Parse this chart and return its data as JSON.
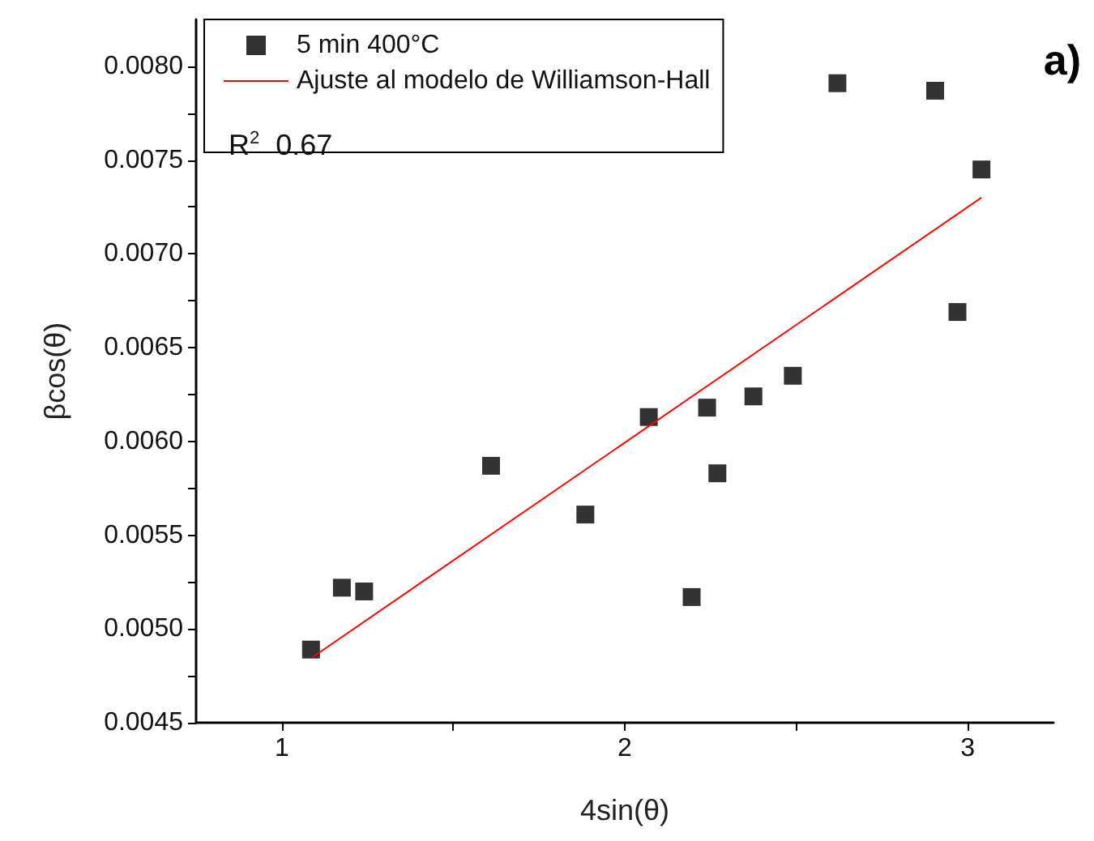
{
  "chart_data": {
    "type": "scatter",
    "xlabel": "4sin(θ)",
    "ylabel": "βcos(θ)",
    "annotations": [
      "R$^{2}$  0.67",
      "a)"
    ],
    "series": [
      {
        "name": "5 min 400°C",
        "type": "scatter",
        "color": "#000000",
        "marker": "square",
        "x": [
          1.085,
          1.175,
          1.24,
          1.61,
          1.885,
          2.07,
          2.195,
          2.24,
          2.27,
          2.375,
          2.49,
          2.62,
          2.905,
          2.97,
          3.04
        ],
        "values": [
          0.00489,
          0.00522,
          0.0052,
          0.00587,
          0.00561,
          0.00613,
          0.00517,
          0.00618,
          0.00583,
          0.00624,
          0.00635,
          0.00791,
          0.00787,
          0.00669,
          0.00745
        ]
      },
      {
        "name": "Ajuste al modelo de Williamson-Hall",
        "type": "line",
        "color": "#ff0000",
        "marker": "none",
        "x": [
          1.09,
          3.04
        ],
        "values": [
          0.00485,
          0.0073
        ]
      }
    ],
    "xlim": [
      0.75,
      3.25
    ],
    "ylim": [
      0.0045,
      0.00825
    ],
    "xticks": [
      1,
      {
        "value": 1.5,
        "label": null
      },
      2,
      {
        "value": 2.5,
        "label": null
      },
      3
    ],
    "yticks": [
      {
        "value": 0.0045,
        "label": "0.0045"
      },
      {
        "value": 0.00475,
        "label": null
      },
      {
        "value": 0.005,
        "label": "0.0050"
      },
      {
        "value": 0.00525,
        "label": null
      },
      {
        "value": 0.0055,
        "label": "0.0055"
      },
      {
        "value": 0.00575,
        "label": null
      },
      {
        "value": 0.006,
        "label": "0.0060"
      },
      {
        "value": 0.00625,
        "label": null
      },
      {
        "value": 0.0065,
        "label": "0.0065"
      },
      {
        "value": 0.00675,
        "label": null
      },
      {
        "value": 0.007,
        "label": "0.0070"
      },
      {
        "value": 0.00725,
        "label": null
      },
      {
        "value": 0.0075,
        "label": "0.0075"
      },
      {
        "value": 0.00775,
        "label": null
      },
      {
        "value": 0.008,
        "label": "0.0080"
      }
    ],
    "grid": false,
    "legend": "top left"
  }
}
